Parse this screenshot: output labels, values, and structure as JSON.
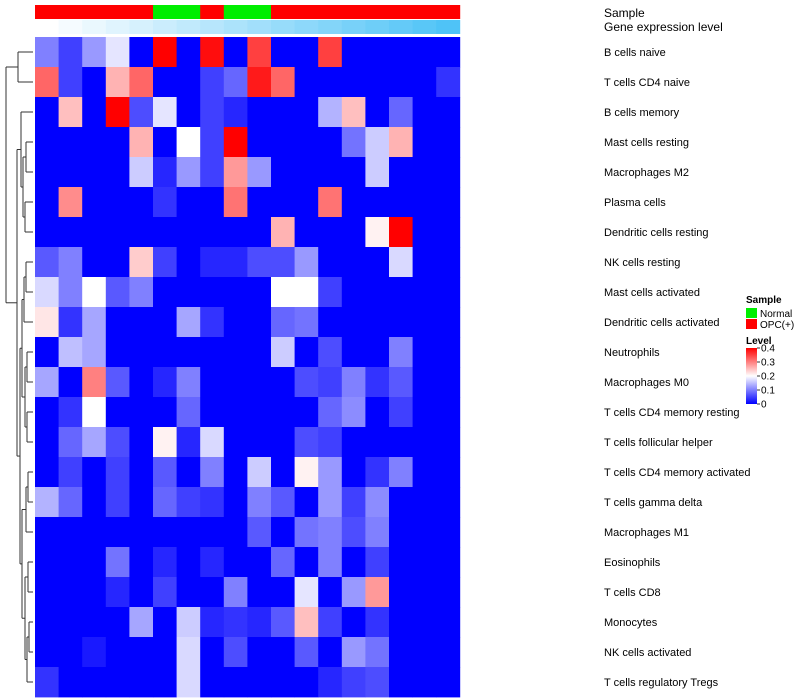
{
  "chart_data": {
    "type": "heatmap",
    "annotation_tracks": [
      {
        "name": "Sample",
        "columns": [
          "OPC(+)",
          "OPC(+)",
          "OPC(+)",
          "OPC(+)",
          "OPC(+)",
          "Normal",
          "Normal",
          "OPC(+)",
          "Normal",
          "Normal",
          "OPC(+)",
          "OPC(+)",
          "OPC(+)",
          "OPC(+)",
          "OPC(+)",
          "OPC(+)",
          "OPC(+)",
          "OPC(+)"
        ]
      },
      {
        "name": "Gene expression level",
        "values": [
          0.0,
          0.04,
          0.08,
          0.12,
          0.16,
          0.2,
          0.24,
          0.28,
          0.32,
          0.36,
          0.4,
          0.44,
          0.48,
          0.52,
          0.56,
          0.6,
          0.64,
          0.68
        ]
      }
    ],
    "rows": [
      "B cells naive",
      "T cells CD4 naive",
      "B cells memory",
      "Mast cells resting",
      "Macrophages M2",
      "Plasma cells",
      "Dendritic cells resting",
      "NK cells resting",
      "Mast cells activated",
      "Dendritic cells activated",
      "Neutrophils",
      "Macrophages M0",
      "T cells CD4 memory resting",
      "T cells follicular helper",
      "T cells CD4 memory activated",
      "T cells gamma delta",
      "Macrophages M1",
      "Eosinophils",
      "T cells CD8",
      "Monocytes",
      "NK cells activated",
      "T cells regulatory  Tregs"
    ],
    "n_columns": 18,
    "values": [
      [
        0.1,
        0.05,
        0.12,
        0.18,
        0,
        0.4,
        0,
        0.39,
        0,
        0.35,
        0,
        0,
        0.35,
        0,
        0,
        0,
        0,
        0
      ],
      [
        0.32,
        0.05,
        0,
        0.26,
        0.32,
        0,
        0,
        0.05,
        0.08,
        0.38,
        0.32,
        0,
        0,
        0,
        0,
        0,
        0,
        0.04
      ],
      [
        0,
        0.25,
        0,
        0.4,
        0.06,
        0.18,
        0,
        0.05,
        0.03,
        0,
        0,
        0,
        0.14,
        0.25,
        0,
        0.08,
        0,
        0
      ],
      [
        0,
        0,
        0,
        0,
        0.26,
        0,
        0.2,
        0.05,
        0.4,
        0,
        0,
        0,
        0,
        0.09,
        0.16,
        0.26,
        0,
        0
      ],
      [
        0,
        0,
        0,
        0,
        0.16,
        0.03,
        0.12,
        0.05,
        0.28,
        0.12,
        0,
        0,
        0,
        0,
        0.16,
        0,
        0,
        0
      ],
      [
        0,
        0.29,
        0,
        0,
        0,
        0.04,
        0,
        0,
        0.31,
        0,
        0,
        0,
        0.31,
        0,
        0,
        0,
        0,
        0
      ],
      [
        0,
        0,
        0,
        0,
        0,
        0,
        0,
        0,
        0,
        0,
        0.26,
        0,
        0,
        0,
        0.21,
        0.4,
        0,
        0
      ],
      [
        0.07,
        0.1,
        0,
        0,
        0.24,
        0.05,
        0,
        0.03,
        0.03,
        0.06,
        0.06,
        0.12,
        0,
        0,
        0,
        0.17,
        0,
        0
      ],
      [
        0.17,
        0.1,
        0.2,
        0.07,
        0.1,
        0,
        0,
        0,
        0,
        0,
        0.2,
        0.2,
        0.05,
        0,
        0,
        0,
        0,
        0
      ],
      [
        0.22,
        0.04,
        0.13,
        0,
        0,
        0,
        0.13,
        0.04,
        0,
        0,
        0.08,
        0.09,
        0,
        0,
        0,
        0,
        0,
        0
      ],
      [
        0,
        0.15,
        0.13,
        0,
        0,
        0,
        0,
        0,
        0,
        0,
        0.16,
        0,
        0.06,
        0,
        0,
        0.1,
        0,
        0
      ],
      [
        0.13,
        0,
        0.3,
        0.07,
        0,
        0.03,
        0.1,
        0,
        0,
        0,
        0,
        0.06,
        0.05,
        0.1,
        0.04,
        0.07,
        0,
        0
      ],
      [
        0,
        0.04,
        0.2,
        0,
        0,
        0,
        0.08,
        0,
        0,
        0,
        0,
        0,
        0.08,
        0.11,
        0,
        0.05,
        0,
        0
      ],
      [
        0,
        0.08,
        0.13,
        0.06,
        0,
        0.21,
        0.03,
        0.17,
        0,
        0,
        0,
        0.06,
        0.05,
        0,
        0,
        0,
        0,
        0
      ],
      [
        0,
        0.05,
        0,
        0.05,
        0,
        0.07,
        0,
        0.1,
        0,
        0.16,
        0,
        0.21,
        0.12,
        0,
        0.04,
        0.1,
        0,
        0
      ],
      [
        0.14,
        0.08,
        0,
        0.05,
        0,
        0.08,
        0.05,
        0.04,
        0,
        0.1,
        0.07,
        0,
        0.12,
        0.05,
        0.11,
        0,
        0,
        0
      ],
      [
        0,
        0,
        0,
        0,
        0,
        0,
        0,
        0,
        0,
        0.07,
        0,
        0.09,
        0.1,
        0.06,
        0.1,
        0,
        0,
        0
      ],
      [
        0,
        0,
        0,
        0.09,
        0,
        0.03,
        0,
        0.03,
        0,
        0,
        0.08,
        0,
        0.1,
        0,
        0.05,
        0,
        0,
        0
      ],
      [
        0,
        0,
        0,
        0.03,
        0,
        0.05,
        0,
        0,
        0.1,
        0,
        0,
        0.18,
        0,
        0.12,
        0.28,
        0,
        0,
        0
      ],
      [
        0,
        0,
        0,
        0,
        0.13,
        0,
        0.16,
        0.03,
        0.04,
        0.03,
        0.07,
        0.25,
        0.05,
        0,
        0.04,
        0,
        0,
        0
      ],
      [
        0,
        0,
        0.02,
        0,
        0,
        0,
        0.17,
        0,
        0.06,
        0,
        0,
        0.07,
        0,
        0.12,
        0.09,
        0,
        0,
        0
      ],
      [
        0.04,
        0,
        0,
        0,
        0,
        0,
        0.17,
        0,
        0,
        0,
        0,
        0,
        0.03,
        0.05,
        0.06,
        0,
        0,
        0
      ]
    ],
    "legend": {
      "sample_title": "Sample",
      "sample_items": [
        {
          "label": "Normal",
          "color": "#00ee00"
        },
        {
          "label": "OPC(+)",
          "color": "#ff0000"
        }
      ],
      "level_title": "Level",
      "level_ticks": [
        "0.4",
        "0.3",
        "0.2",
        "0.1",
        "0"
      ],
      "level_range": [
        0,
        0.4
      ]
    },
    "colors": {
      "low": "#0000ff",
      "mid": "#ffffff",
      "high": "#ff0000",
      "annotation_low": "#ffffff",
      "annotation_high": "#4fc3f7"
    },
    "dendrogram": "row",
    "grid": false,
    "legend_position": "right"
  }
}
